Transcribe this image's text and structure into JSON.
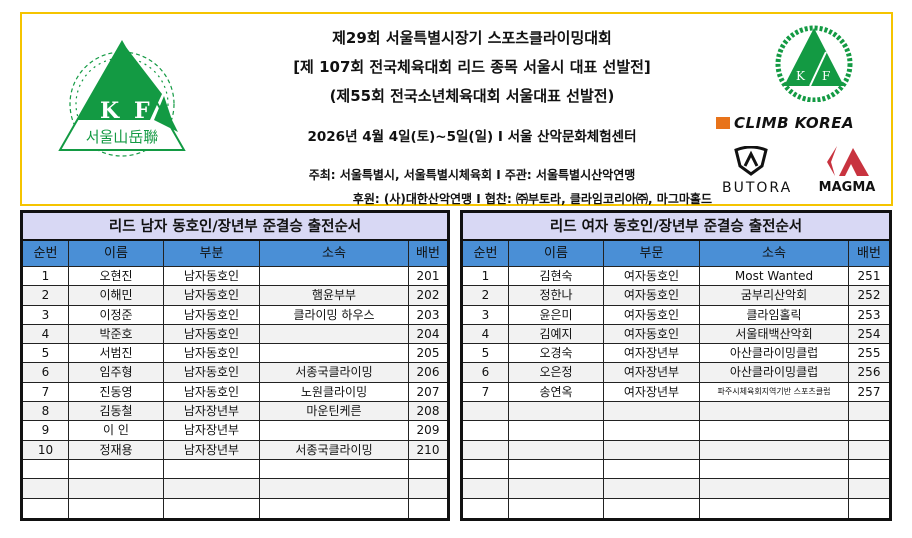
{
  "header": {
    "title_lines": [
      "제29회 서울특별시장기 스포츠클라이밍대회",
      "[제 107회 전국체육대회 리드 종목 서울시 대표 선발전]",
      "(제55회 전국소년체육대회 서울대표 선발전)"
    ],
    "date_venue": "2026년 4월 4일(토)~5일(일) I 서울 산악문화체험센터",
    "host": "주최: 서울특별시, 서울특별시체육회  I  주관: 서울특별시산악연맹",
    "sponsor": "후원: (사)대한산악연맹  I  협찬: ㈜부토라, 클라임코리아㈜, 마그마홀드",
    "logo_left_text": "서울山岳聯",
    "logo_letters": [
      "K",
      "F"
    ],
    "sponsor_logos": [
      "CLIMB KOREA",
      "BUTORA",
      "MAGMA"
    ]
  },
  "colors": {
    "border": "#f5c400",
    "title_bg": "#d8d8f4",
    "header_bg": "#4a8fd6",
    "logo_green": "#139a43",
    "magma_red": "#c8333f",
    "climb_orange": "#e8731a"
  },
  "men": {
    "title": "리드 남자 동호인/장년부 준결승 출전순서",
    "columns": [
      "순번",
      "이름",
      "부분",
      "소속",
      "배번"
    ],
    "rows": [
      [
        "1",
        "오현진",
        "남자동호인",
        "",
        "201"
      ],
      [
        "2",
        "이해민",
        "남자동호인",
        "햄윤부부",
        "202"
      ],
      [
        "3",
        "이정준",
        "남자동호인",
        "클라이밍 하우스",
        "203"
      ],
      [
        "4",
        "박준호",
        "남자동호인",
        "",
        "204"
      ],
      [
        "5",
        "서범진",
        "남자동호인",
        "",
        "205"
      ],
      [
        "6",
        "임주형",
        "남자동호인",
        "서종국클라이밍",
        "206"
      ],
      [
        "7",
        "진동영",
        "남자동호인",
        "노원클라이밍",
        "207"
      ],
      [
        "8",
        "김동철",
        "남자장년부",
        "마운틴케른",
        "208"
      ],
      [
        "9",
        "이 인",
        "남자장년부",
        "",
        "209"
      ],
      [
        "10",
        "정재용",
        "남자장년부",
        "서종국클라이밍",
        "210"
      ],
      [
        "",
        "",
        "",
        "",
        ""
      ],
      [
        "",
        "",
        "",
        "",
        ""
      ],
      [
        "",
        "",
        "",
        "",
        ""
      ]
    ]
  },
  "women": {
    "title": "리드 여자 동호인/장년부 준결승 출전순서",
    "columns": [
      "순번",
      "이름",
      "부문",
      "소속",
      "배번"
    ],
    "rows": [
      [
        "1",
        "김현숙",
        "여자동호인",
        "Most Wanted",
        "251"
      ],
      [
        "2",
        "정한나",
        "여자동호인",
        "굼부리산악회",
        "252"
      ],
      [
        "3",
        "윤은미",
        "여자동호인",
        "클라임홀릭",
        "253"
      ],
      [
        "4",
        "김예지",
        "여자동호인",
        "서울태백산악회",
        "254"
      ],
      [
        "5",
        "오경숙",
        "여자장년부",
        "아산클라이밍클럽",
        "255"
      ],
      [
        "6",
        "오은정",
        "여자장년부",
        "아산클라이밍클럽",
        "256"
      ],
      [
        "7",
        "송연옥",
        "여자장년부",
        "파주시체육회지역기반 스포츠클럽",
        "257"
      ],
      [
        "",
        "",
        "",
        "",
        ""
      ],
      [
        "",
        "",
        "",
        "",
        ""
      ],
      [
        "",
        "",
        "",
        "",
        ""
      ],
      [
        "",
        "",
        "",
        "",
        ""
      ],
      [
        "",
        "",
        "",
        "",
        ""
      ],
      [
        "",
        "",
        "",
        "",
        ""
      ]
    ]
  }
}
